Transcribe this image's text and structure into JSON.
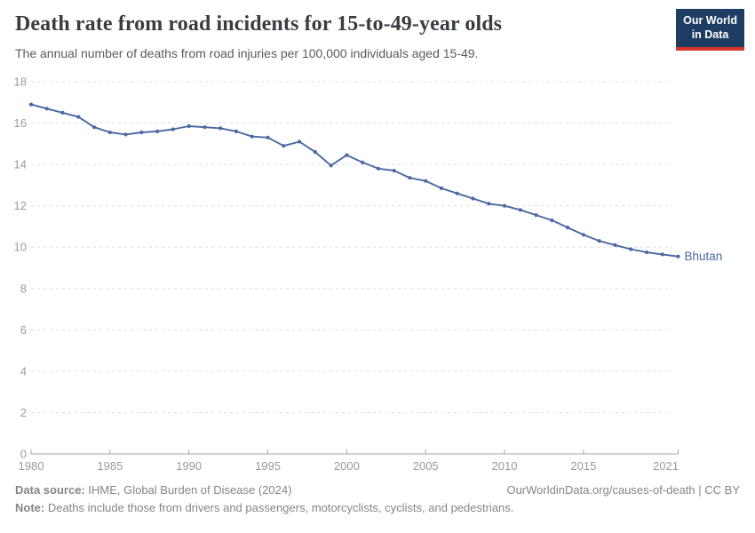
{
  "header": {
    "title": "Death rate from road incidents for 15-to-49-year olds",
    "subtitle": "The annual number of deaths from road injuries per 100,000 individuals aged 15-49."
  },
  "logo": {
    "line1": "Our World",
    "line2": "in Data",
    "bg_color": "#1d3d63",
    "stripe_color": "#d7342a"
  },
  "chart_data": {
    "type": "line",
    "title": "Death rate from road incidents for 15-to-49-year olds",
    "xlabel": "",
    "ylabel": "",
    "xlim": [
      1980,
      2021
    ],
    "ylim": [
      0,
      18
    ],
    "xticks": [
      1980,
      1985,
      1990,
      1995,
      2000,
      2005,
      2010,
      2015,
      2021
    ],
    "yticks": [
      0,
      2,
      4,
      6,
      8,
      10,
      12,
      14,
      16,
      18
    ],
    "grid": "horizontal-dashed",
    "legend_position": "end-of-line-label",
    "x": [
      1980,
      1981,
      1982,
      1983,
      1984,
      1985,
      1986,
      1987,
      1988,
      1989,
      1990,
      1991,
      1992,
      1993,
      1994,
      1995,
      1996,
      1997,
      1998,
      1999,
      2000,
      2001,
      2002,
      2003,
      2004,
      2005,
      2006,
      2007,
      2008,
      2009,
      2010,
      2011,
      2012,
      2013,
      2014,
      2015,
      2016,
      2017,
      2018,
      2019,
      2020,
      2021
    ],
    "series": [
      {
        "name": "Bhutan",
        "color": "#4a68a2",
        "values": [
          16.9,
          16.7,
          16.5,
          16.3,
          15.8,
          15.55,
          15.45,
          15.55,
          15.6,
          15.7,
          15.85,
          15.8,
          15.75,
          15.6,
          15.35,
          15.3,
          14.9,
          15.1,
          14.6,
          13.95,
          14.45,
          14.1,
          13.8,
          13.7,
          13.35,
          13.2,
          12.85,
          12.6,
          12.35,
          12.1,
          12.0,
          11.8,
          11.55,
          11.3,
          10.95,
          10.6,
          10.3,
          10.1,
          9.9,
          9.75,
          9.65,
          9.55
        ]
      }
    ]
  },
  "footer": {
    "source_label": "Data source:",
    "source_text": " IHME, Global Burden of Disease (2024)",
    "link": "OurWorldinData.org/causes-of-death | CC BY",
    "note_label": "Note:",
    "note_text": " Deaths include those from drivers and passengers, motorcyclists, cyclists, and pedestrians."
  }
}
